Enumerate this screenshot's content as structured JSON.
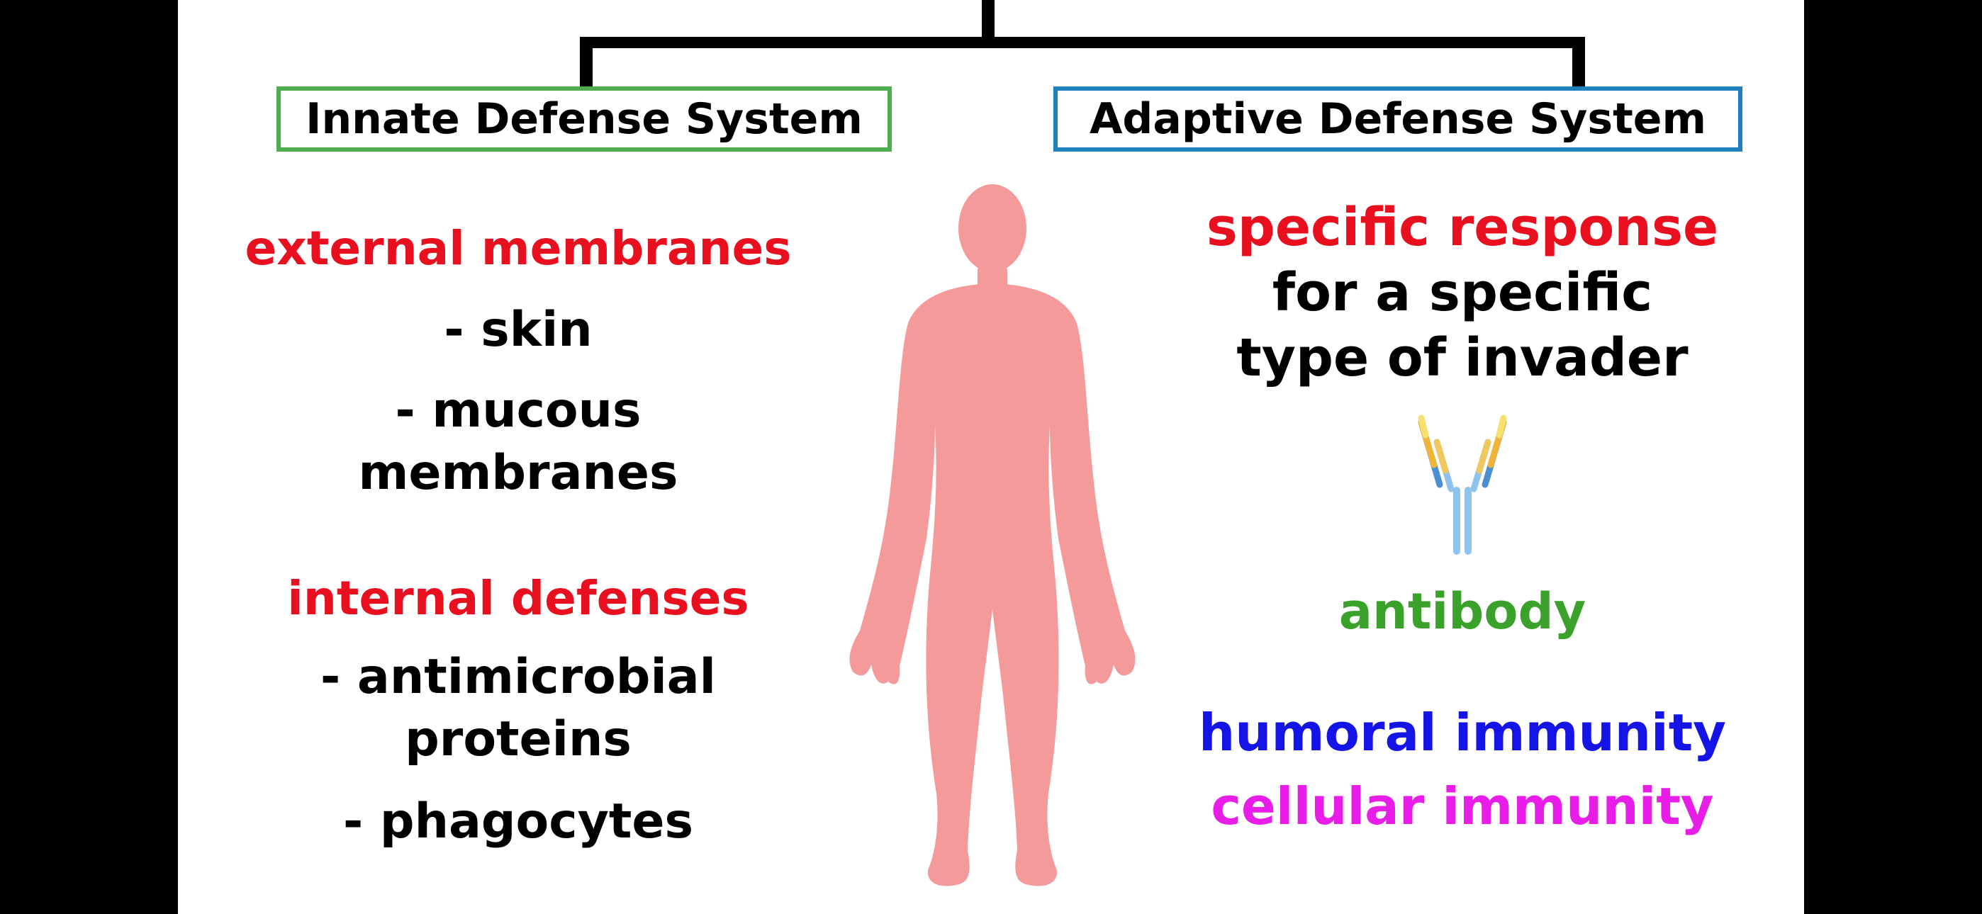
{
  "colors": {
    "innate_border": "#4fad4f",
    "adaptive_border": "#1f7fbf",
    "heading_red": "#e8101f",
    "body_black": "#000000",
    "antibody_green": "#3aa12a",
    "humoral_blue": "#1414e6",
    "cellular_magenta": "#e81ee8",
    "body_silhouette": "#f59a9a"
  },
  "innate": {
    "title": "Innate Defense System",
    "external_heading": "external membranes",
    "skin": "- skin",
    "mucous_line1": "- mucous",
    "mucous_line2": "membranes",
    "internal_heading": "internal defenses",
    "antimicrobial_line1": "- antimicrobial",
    "antimicrobial_line2": "proteins",
    "phagocytes": "- phagocytes"
  },
  "adaptive": {
    "title": "Adaptive Defense System",
    "specific_heading": "specific response",
    "specific_line2": "for a specific",
    "specific_line3": "type of invader",
    "antibody_label": "antibody",
    "humoral": "humoral immunity",
    "cellular": "cellular immunity"
  },
  "icons": {
    "human": "human-body-silhouette-icon",
    "antibody": "antibody-y-icon"
  }
}
